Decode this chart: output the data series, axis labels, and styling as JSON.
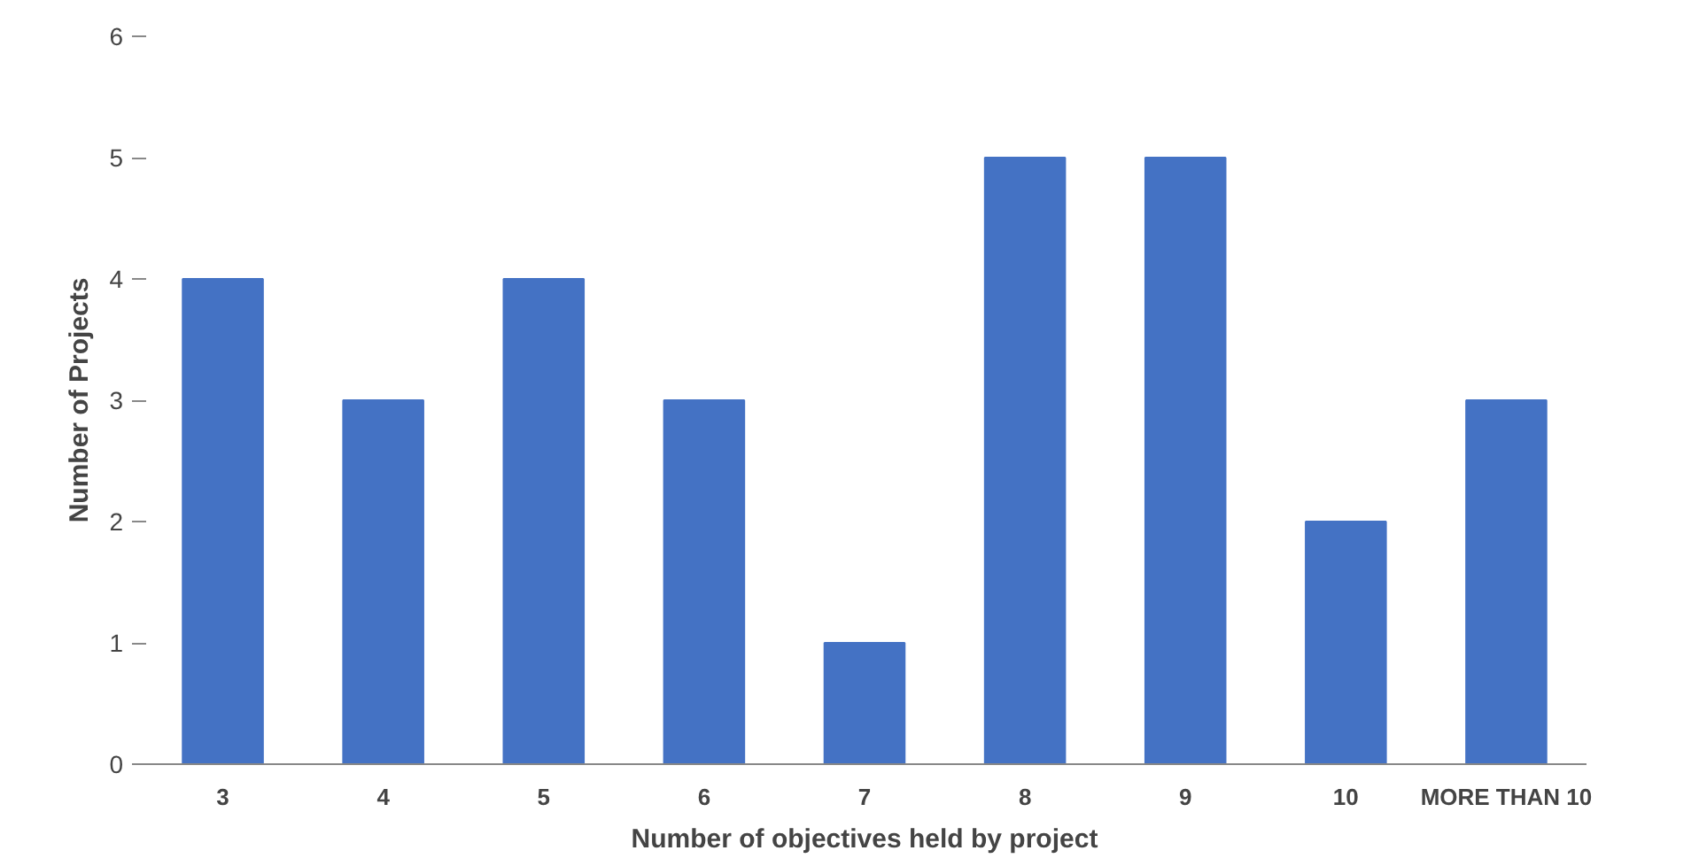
{
  "chart_data": {
    "type": "bar",
    "xlabel": "Number of objectives held by project",
    "ylabel": "Number of Projects",
    "categories": [
      "3",
      "4",
      "5",
      "6",
      "7",
      "8",
      "9",
      "10",
      "MORE THAN 10"
    ],
    "values": [
      4,
      3,
      4,
      3,
      1,
      5,
      5,
      2,
      3
    ],
    "color": "#4472c4",
    "ylim": [
      0,
      6
    ],
    "yticks": [
      0,
      1,
      2,
      3,
      4,
      5,
      6
    ]
  }
}
